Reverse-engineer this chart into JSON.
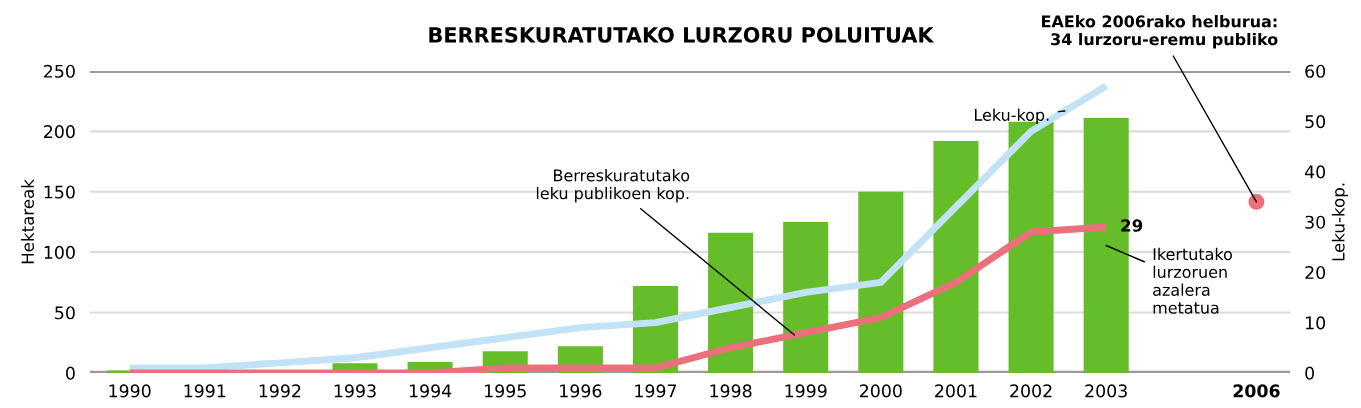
{
  "chart_data": {
    "type": "bar",
    "title": "BERRESKURATUTAKO LURZORU POLUITUAK",
    "categories": [
      "1990",
      "1991",
      "1992",
      "1993",
      "1994",
      "1995",
      "1996",
      "1997",
      "1998",
      "1999",
      "2000",
      "2001",
      "2002",
      "2003",
      null,
      "2006"
    ],
    "series": [
      {
        "name": "Ikertutako\nlurzoruen\nazalera\nmetatua",
        "color": "#66bd2a",
        "values": [
          2,
          0,
          0,
          8,
          9,
          18,
          22,
          72,
          116,
          125,
          150,
          192,
          208,
          211,
          null,
          null
        ]
      },
      {
        "type": "line",
        "axis": "y2",
        "name": "Leku-kop.",
        "color": "#c2e2f6",
        "values": [
          1,
          1,
          2,
          3,
          5,
          7,
          9,
          10,
          13,
          16,
          18,
          33,
          48,
          57,
          null,
          null
        ]
      },
      {
        "type": "line",
        "axis": "y2",
        "name": "Berreskuratutako\nleku publikoen kop.",
        "color": "#ea717b",
        "values": [
          0,
          0,
          0,
          0,
          0,
          1,
          1,
          1,
          5,
          8,
          11,
          18,
          28,
          29,
          null,
          null
        ],
        "value_labels": [
          null,
          null,
          null,
          null,
          null,
          null,
          null,
          null,
          null,
          null,
          null,
          null,
          null,
          "29",
          null,
          null
        ]
      },
      {
        "type": "scatter",
        "axis": "y2",
        "name": "EAEko 2006rako helburua:\n34 lurzoru-eremu publiko",
        "color": "#ec717b",
        "values": [
          null,
          null,
          null,
          null,
          null,
          null,
          null,
          null,
          null,
          null,
          null,
          null,
          null,
          null,
          null,
          34
        ]
      }
    ],
    "ylabel": "Hektareak",
    "y2label": "Leku-kop.",
    "ylim": [
      0,
      250
    ],
    "yticks": [
      0,
      50,
      100,
      150,
      200,
      250
    ],
    "y2lim": [
      0,
      60
    ],
    "y2ticks": [
      0,
      10,
      20,
      30,
      40,
      50,
      60
    ],
    "grid": "y",
    "legend": false
  }
}
